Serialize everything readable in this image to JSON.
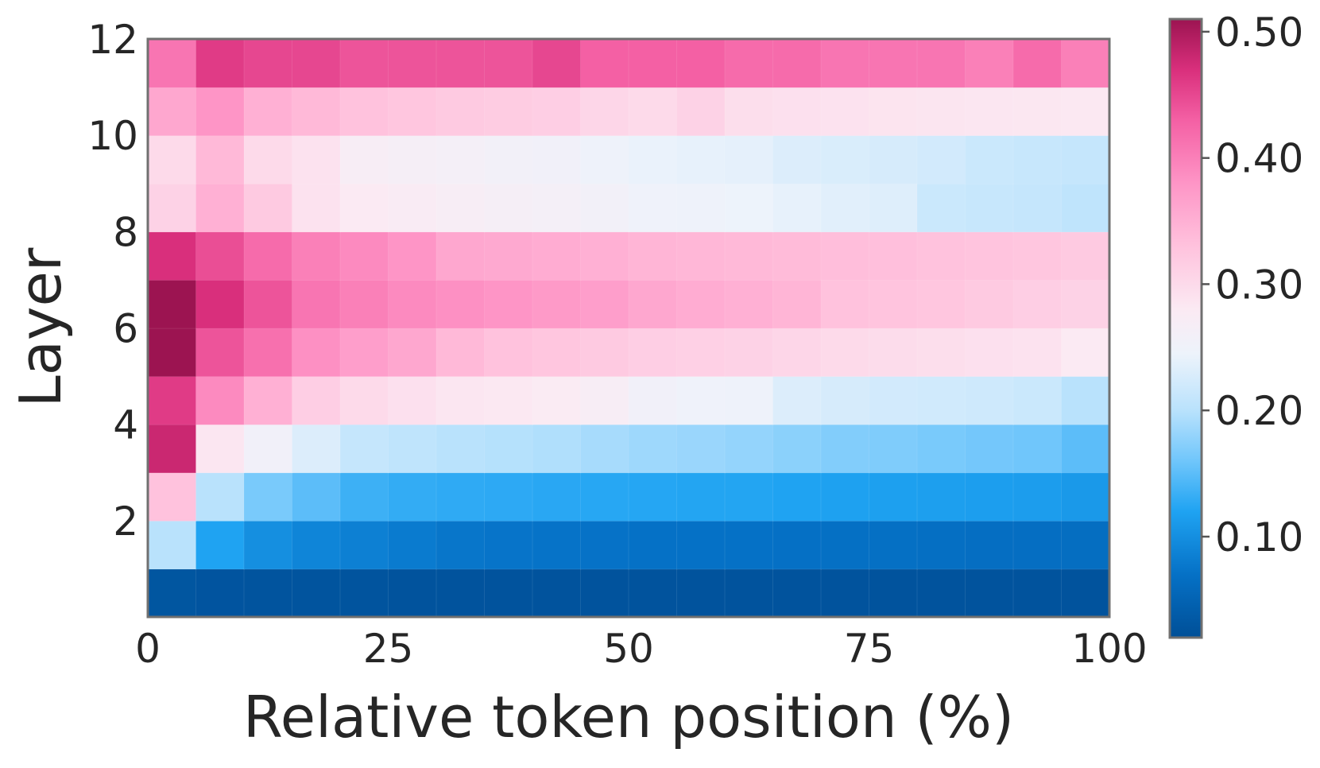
{
  "chart_data": {
    "type": "heatmap",
    "title": "",
    "xlabel": "Relative token position (%)",
    "ylabel": "Layer",
    "x_ticks": [
      "0",
      "25",
      "50",
      "75",
      "100"
    ],
    "y_ticks": [
      "2",
      "4",
      "6",
      "8",
      "10",
      "12"
    ],
    "xlim": [
      0,
      100
    ],
    "ylim": [
      0,
      12
    ],
    "x_bins": 20,
    "layers": [
      1,
      2,
      3,
      4,
      5,
      6,
      7,
      8,
      9,
      10,
      11,
      12
    ],
    "colorbar": {
      "ticks": [
        "0.10",
        "0.20",
        "0.30",
        "0.40",
        "0.50"
      ],
      "range": [
        0.02,
        0.51
      ],
      "colormap": "blue-white-pink",
      "stops": [
        {
          "v": 0.02,
          "color": "#004f97"
        },
        {
          "v": 0.07,
          "color": "#0571c6"
        },
        {
          "v": 0.12,
          "color": "#1fa3f2"
        },
        {
          "v": 0.16,
          "color": "#70c6fb"
        },
        {
          "v": 0.2,
          "color": "#b9e2fc"
        },
        {
          "v": 0.245,
          "color": "#edf3fb"
        },
        {
          "v": 0.28,
          "color": "#fbeaf3"
        },
        {
          "v": 0.33,
          "color": "#ffc2dd"
        },
        {
          "v": 0.38,
          "color": "#fe95c6"
        },
        {
          "v": 0.43,
          "color": "#f460a4"
        },
        {
          "v": 0.47,
          "color": "#d92f7c"
        },
        {
          "v": 0.51,
          "color": "#9c1451"
        }
      ]
    },
    "values": [
      [
        0.03,
        0.028,
        0.027,
        0.027,
        0.027,
        0.026,
        0.026,
        0.026,
        0.026,
        0.026,
        0.026,
        0.026,
        0.026,
        0.026,
        0.026,
        0.026,
        0.026,
        0.026,
        0.026,
        0.026
      ],
      [
        0.2,
        0.12,
        0.1,
        0.09,
        0.085,
        0.08,
        0.075,
        0.073,
        0.072,
        0.071,
        0.07,
        0.07,
        0.07,
        0.069,
        0.068,
        0.068,
        0.067,
        0.066,
        0.066,
        0.065
      ],
      [
        0.33,
        0.2,
        0.165,
        0.15,
        0.135,
        0.13,
        0.128,
        0.127,
        0.125,
        0.124,
        0.123,
        0.122,
        0.122,
        0.12,
        0.118,
        0.117,
        0.116,
        0.115,
        0.114,
        0.11
      ],
      [
        0.48,
        0.285,
        0.255,
        0.23,
        0.21,
        0.205,
        0.2,
        0.198,
        0.195,
        0.19,
        0.185,
        0.183,
        0.18,
        0.175,
        0.17,
        0.168,
        0.165,
        0.162,
        0.16,
        0.15
      ],
      [
        0.46,
        0.39,
        0.35,
        0.315,
        0.3,
        0.292,
        0.285,
        0.282,
        0.278,
        0.27,
        0.255,
        0.25,
        0.248,
        0.23,
        0.225,
        0.222,
        0.22,
        0.218,
        0.215,
        0.2
      ],
      [
        0.51,
        0.44,
        0.415,
        0.385,
        0.37,
        0.36,
        0.34,
        0.33,
        0.325,
        0.32,
        0.315,
        0.312,
        0.31,
        0.305,
        0.3,
        0.298,
        0.295,
        0.292,
        0.29,
        0.28
      ],
      [
        0.51,
        0.47,
        0.44,
        0.41,
        0.4,
        0.39,
        0.385,
        0.38,
        0.375,
        0.37,
        0.36,
        0.355,
        0.35,
        0.345,
        0.33,
        0.328,
        0.325,
        0.32,
        0.315,
        0.31
      ],
      [
        0.47,
        0.445,
        0.42,
        0.4,
        0.39,
        0.38,
        0.36,
        0.358,
        0.355,
        0.35,
        0.345,
        0.342,
        0.34,
        0.338,
        0.335,
        0.333,
        0.33,
        0.328,
        0.325,
        0.32
      ],
      [
        0.31,
        0.35,
        0.32,
        0.29,
        0.28,
        0.275,
        0.27,
        0.265,
        0.262,
        0.258,
        0.25,
        0.248,
        0.245,
        0.24,
        0.235,
        0.232,
        0.215,
        0.212,
        0.21,
        0.205
      ],
      [
        0.3,
        0.34,
        0.3,
        0.29,
        0.27,
        0.265,
        0.262,
        0.258,
        0.255,
        0.248,
        0.242,
        0.24,
        0.238,
        0.23,
        0.228,
        0.225,
        0.222,
        0.215,
        0.212,
        0.21
      ],
      [
        0.36,
        0.38,
        0.35,
        0.34,
        0.33,
        0.325,
        0.32,
        0.318,
        0.315,
        0.305,
        0.3,
        0.31,
        0.295,
        0.292,
        0.29,
        0.288,
        0.286,
        0.285,
        0.284,
        0.282
      ],
      [
        0.41,
        0.46,
        0.45,
        0.45,
        0.44,
        0.44,
        0.44,
        0.44,
        0.45,
        0.43,
        0.43,
        0.43,
        0.42,
        0.42,
        0.41,
        0.41,
        0.41,
        0.4,
        0.42,
        0.4
      ]
    ]
  }
}
